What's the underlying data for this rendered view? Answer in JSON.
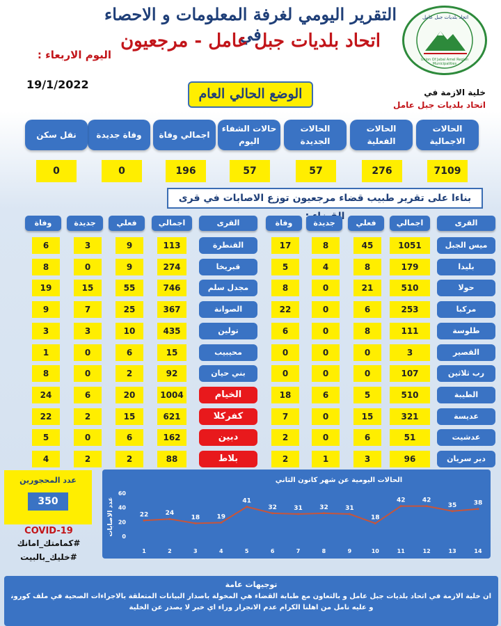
{
  "header": {
    "title_line1": "التقرير اليومي لغرفة المعلومات و الاحصاء في",
    "title_line2": "اتحاد بلديات جبل عامل - مرجعيون",
    "day": "اليوم الاربعاء :",
    "date": "19/1/2022",
    "cell_line1": "خلية الازمة في",
    "cell_line2": "اتحاد بلديات جبل عامل",
    "logo_text_ar": "اتحاد بلديات جبل عامل",
    "logo_text_en": "Union Of Jabal Amel Region Municipalities"
  },
  "status_title": "الوضع الحالي العام",
  "summary": [
    {
      "label": "الحالات الاجمالية",
      "value": "7109"
    },
    {
      "label": "الحالات الفعلية",
      "value": "276"
    },
    {
      "label": "الحالات الجديدة",
      "value": "57"
    },
    {
      "label": "حالات الشفاء اليوم",
      "value": "57"
    },
    {
      "label": "اجمالي وفاة",
      "value": "196"
    },
    {
      "label": "وفاة جديدة",
      "value": "0"
    },
    {
      "label": "نقل سكن",
      "value": "0"
    }
  ],
  "banner": "بناءا على تقرير طبيب قضاء مرجعيون توزع الاصابات في قرى القضاء :",
  "table_headers": {
    "village": "القرى",
    "total": "اجمالي",
    "active": "فعلي",
    "new": "جديدة",
    "death": "وفاة"
  },
  "right_table": [
    {
      "village": "ميس الجبل",
      "total": "1051",
      "active": "45",
      "new": "8",
      "death": "17"
    },
    {
      "village": "بليدا",
      "total": "179",
      "active": "8",
      "new": "4",
      "death": "5"
    },
    {
      "village": "حولا",
      "total": "510",
      "active": "21",
      "new": "0",
      "death": "8"
    },
    {
      "village": "مركبا",
      "total": "253",
      "active": "6",
      "new": "0",
      "death": "22"
    },
    {
      "village": "طلوسة",
      "total": "111",
      "active": "8",
      "new": "0",
      "death": "6"
    },
    {
      "village": "القصير",
      "total": "3",
      "active": "0",
      "new": "0",
      "death": "0"
    },
    {
      "village": "رب ثلاثين",
      "total": "107",
      "active": "0",
      "new": "0",
      "death": "0"
    },
    {
      "village": "الطيبة",
      "total": "510",
      "active": "5",
      "new": "6",
      "death": "18"
    },
    {
      "village": "عديسة",
      "total": "321",
      "active": "15",
      "new": "0",
      "death": "7"
    },
    {
      "village": "عدشيت",
      "total": "51",
      "active": "6",
      "new": "0",
      "death": "2"
    },
    {
      "village": "دير سريان",
      "total": "96",
      "active": "3",
      "new": "1",
      "death": "2"
    }
  ],
  "left_table": [
    {
      "village": "القنطرة",
      "total": "113",
      "active": "9",
      "new": "3",
      "death": "6",
      "highlight": false
    },
    {
      "village": "قبريخا",
      "total": "274",
      "active": "9",
      "new": "0",
      "death": "8",
      "highlight": false
    },
    {
      "village": "مجدل سلم",
      "total": "746",
      "active": "55",
      "new": "15",
      "death": "19",
      "highlight": false
    },
    {
      "village": "الصوانة",
      "total": "367",
      "active": "25",
      "new": "7",
      "death": "9",
      "highlight": false
    },
    {
      "village": "تولين",
      "total": "435",
      "active": "10",
      "new": "3",
      "death": "3",
      "highlight": false
    },
    {
      "village": "محيبيب",
      "total": "15",
      "active": "6",
      "new": "0",
      "death": "1",
      "highlight": false
    },
    {
      "village": "بني حيان",
      "total": "92",
      "active": "2",
      "new": "0",
      "death": "8",
      "highlight": false
    },
    {
      "village": "الخيام",
      "total": "1004",
      "active": "20",
      "new": "6",
      "death": "24",
      "highlight": true
    },
    {
      "village": "كفركلا",
      "total": "621",
      "active": "15",
      "new": "2",
      "death": "22",
      "highlight": true
    },
    {
      "village": "دبين",
      "total": "162",
      "active": "6",
      "new": "0",
      "death": "5",
      "highlight": true
    },
    {
      "village": "بلاط",
      "total": "88",
      "active": "2",
      "new": "2",
      "death": "4",
      "highlight": true
    }
  ],
  "quarantine": {
    "label": "عدد المحجورين",
    "value": "350"
  },
  "covid_label": "COVID-19",
  "hashtags": [
    "#كمامتك_امانك",
    "#خليك_بالبيت"
  ],
  "chart_data": {
    "type": "line",
    "title": "الحالات اليومية عن شهر كانون الثاني",
    "ylabel": "عدد الاصابات",
    "xlabel": "",
    "x": [
      1,
      2,
      3,
      4,
      5,
      6,
      7,
      8,
      9,
      10,
      11,
      12,
      13,
      14
    ],
    "values": [
      22,
      24,
      18,
      19,
      41,
      32,
      31,
      32,
      31,
      18,
      42,
      42,
      35,
      38
    ],
    "ylim": [
      0,
      60
    ],
    "yticks": [
      0,
      20,
      40,
      60
    ],
    "line_color": "#c8553a",
    "grid": false
  },
  "guidance": {
    "title": "توجيهات عامة",
    "line1": "ان خلية الازمة في اتحاد بلديات جبل عامل و بالتعاون مع طبابة القضاء هي المخولة باصدار البيانات المتعلقة بالاجراءات الصحية في ملف كورونا",
    "line2": "و عليه نامل من اهلنا الكرام عدم الانجرار وراء اي خبر لا يصدر عن الخلية"
  },
  "colors": {
    "blue": "#3a73c4",
    "yellow": "#ffee00",
    "red": "#e8191c",
    "navy": "#1f3f78"
  }
}
